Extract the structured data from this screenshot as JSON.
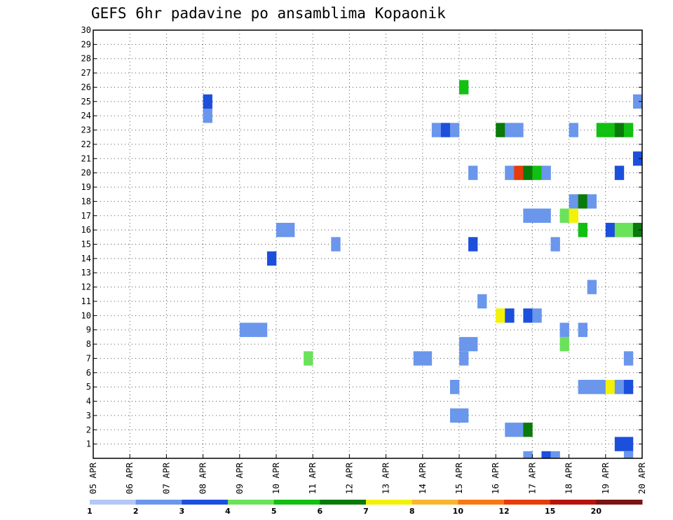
{
  "chart_data": {
    "type": "heatmap",
    "title": "GEFS 6hr padavine po ansamblima Kopaonik",
    "xlabel": "",
    "ylabel": "",
    "y_ticks": [
      1,
      2,
      3,
      4,
      5,
      6,
      7,
      8,
      9,
      10,
      11,
      12,
      13,
      14,
      15,
      16,
      17,
      18,
      19,
      20,
      21,
      22,
      23,
      24,
      25,
      26,
      27,
      28,
      29,
      30
    ],
    "x_ticks": [
      "05 APR",
      "06 APR",
      "07 APR",
      "08 APR",
      "09 APR",
      "10 APR",
      "11 APR",
      "12 APR",
      "13 APR",
      "14 APR",
      "15 APR",
      "16 APR",
      "17 APR",
      "18 APR",
      "19 APR",
      "20 APR"
    ],
    "ylim": [
      0,
      30
    ],
    "steps_per_day": 4,
    "total_steps": 60,
    "grid": true,
    "legend_position": "bottom",
    "legend": {
      "labels": [
        "1",
        "2",
        "3",
        "4",
        "5",
        "6",
        "7",
        "8",
        "10",
        "12",
        "15",
        "20"
      ],
      "colors": [
        "#b4c8f5",
        "#6a96ec",
        "#1c4fdc",
        "#6ae25a",
        "#12c012",
        "#0a7a0a",
        "#f2f208",
        "#fab432",
        "#fa7814",
        "#e63c0a",
        "#b4140a",
        "#781414"
      ]
    },
    "cells": [
      {
        "t": 12.5,
        "m": 24,
        "c": 1
      },
      {
        "t": 12.5,
        "m": 25,
        "c": 2
      },
      {
        "t": 59.5,
        "m": 25,
        "c": 1
      },
      {
        "t": 40.5,
        "m": 26,
        "c": 4
      },
      {
        "t": 37.5,
        "m": 23,
        "c": 1
      },
      {
        "t": 38.5,
        "m": 23,
        "c": 2
      },
      {
        "t": 39.5,
        "m": 23,
        "c": 1
      },
      {
        "t": 44.5,
        "m": 23,
        "c": 5
      },
      {
        "t": 45.5,
        "m": 23,
        "c": 1
      },
      {
        "t": 46.5,
        "m": 23,
        "c": 1
      },
      {
        "t": 52.5,
        "m": 23,
        "c": 1
      },
      {
        "t": 55.5,
        "m": 23,
        "c": 4
      },
      {
        "t": 56.5,
        "m": 23,
        "c": 4
      },
      {
        "t": 57.5,
        "m": 23,
        "c": 5
      },
      {
        "t": 58.5,
        "m": 23,
        "c": 4
      },
      {
        "t": 59.5,
        "m": 21,
        "c": 2
      },
      {
        "t": 41.5,
        "m": 20,
        "c": 1
      },
      {
        "t": 45.5,
        "m": 20,
        "c": 1
      },
      {
        "t": 46.5,
        "m": 20,
        "c": 9
      },
      {
        "t": 47.5,
        "m": 20,
        "c": 5
      },
      {
        "t": 48.5,
        "m": 20,
        "c": 4
      },
      {
        "t": 49.5,
        "m": 20,
        "c": 1
      },
      {
        "t": 57.5,
        "m": 20,
        "c": 2
      },
      {
        "t": 52.5,
        "m": 18,
        "c": 1
      },
      {
        "t": 53.5,
        "m": 18,
        "c": 5
      },
      {
        "t": 54.5,
        "m": 18,
        "c": 1
      },
      {
        "t": 47.5,
        "m": 17,
        "c": 1
      },
      {
        "t": 48.5,
        "m": 17,
        "c": 1
      },
      {
        "t": 49.5,
        "m": 17,
        "c": 1
      },
      {
        "t": 51.5,
        "m": 17,
        "c": 3
      },
      {
        "t": 52.5,
        "m": 17,
        "c": 6
      },
      {
        "t": 20.5,
        "m": 16,
        "c": 1
      },
      {
        "t": 21.5,
        "m": 16,
        "c": 1
      },
      {
        "t": 53.5,
        "m": 16,
        "c": 4
      },
      {
        "t": 56.5,
        "m": 16,
        "c": 2
      },
      {
        "t": 57.5,
        "m": 16,
        "c": 3
      },
      {
        "t": 58.5,
        "m": 16,
        "c": 3
      },
      {
        "t": 59.5,
        "m": 16,
        "c": 5
      },
      {
        "t": 26.5,
        "m": 15,
        "c": 1
      },
      {
        "t": 41.5,
        "m": 15,
        "c": 2
      },
      {
        "t": 50.5,
        "m": 15,
        "c": 1
      },
      {
        "t": 19.5,
        "m": 14,
        "c": 2
      },
      {
        "t": 54.5,
        "m": 12,
        "c": 1
      },
      {
        "t": 42.5,
        "m": 11,
        "c": 1
      },
      {
        "t": 44.5,
        "m": 10,
        "c": 6
      },
      {
        "t": 45.5,
        "m": 10,
        "c": 2
      },
      {
        "t": 47.5,
        "m": 10,
        "c": 2
      },
      {
        "t": 48.5,
        "m": 10,
        "c": 1
      },
      {
        "t": 16.5,
        "m": 9,
        "c": 1
      },
      {
        "t": 17.5,
        "m": 9,
        "c": 1
      },
      {
        "t": 18.5,
        "m": 9,
        "c": 1
      },
      {
        "t": 51.5,
        "m": 9,
        "c": 1
      },
      {
        "t": 53.5,
        "m": 9,
        "c": 1
      },
      {
        "t": 40.5,
        "m": 8,
        "c": 1
      },
      {
        "t": 41.5,
        "m": 8,
        "c": 1
      },
      {
        "t": 51.5,
        "m": 8,
        "c": 3
      },
      {
        "t": 23.5,
        "m": 7,
        "c": 3
      },
      {
        "t": 35.5,
        "m": 7,
        "c": 1
      },
      {
        "t": 36.5,
        "m": 7,
        "c": 1
      },
      {
        "t": 40.5,
        "m": 7,
        "c": 1
      },
      {
        "t": 58.5,
        "m": 7,
        "c": 1
      },
      {
        "t": 39.5,
        "m": 5,
        "c": 1
      },
      {
        "t": 53.5,
        "m": 5,
        "c": 1
      },
      {
        "t": 54.5,
        "m": 5,
        "c": 1
      },
      {
        "t": 55.5,
        "m": 5,
        "c": 1
      },
      {
        "t": 56.5,
        "m": 5,
        "c": 6
      },
      {
        "t": 57.5,
        "m": 5,
        "c": 1
      },
      {
        "t": 58.5,
        "m": 5,
        "c": 2
      },
      {
        "t": 39.5,
        "m": 3,
        "c": 1
      },
      {
        "t": 40.5,
        "m": 3,
        "c": 1
      },
      {
        "t": 45.5,
        "m": 2,
        "c": 1
      },
      {
        "t": 46.5,
        "m": 2,
        "c": 1
      },
      {
        "t": 47.5,
        "m": 2,
        "c": 5
      },
      {
        "t": 57.5,
        "m": 1,
        "c": 2
      },
      {
        "t": 58.5,
        "m": 1,
        "c": 2
      },
      {
        "t": 47.5,
        "m": 0,
        "c": 1
      },
      {
        "t": 49.5,
        "m": 0,
        "c": 2
      },
      {
        "t": 50.5,
        "m": 0,
        "c": 1
      },
      {
        "t": 58.5,
        "m": 0,
        "c": 1
      }
    ]
  }
}
